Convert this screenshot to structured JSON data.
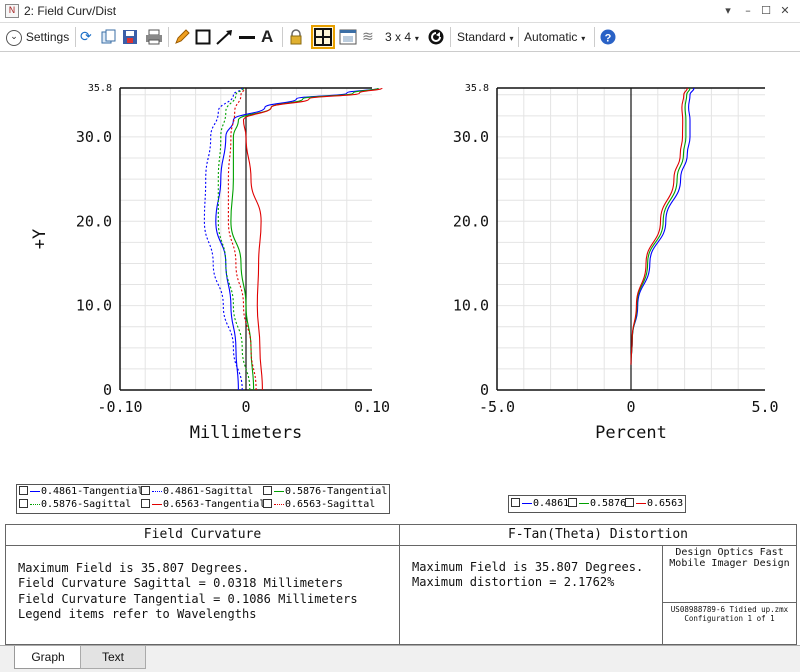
{
  "window": {
    "title": "2: Field Curv/Dist",
    "icon": "document-icon"
  },
  "toolbar": {
    "settings_label": "Settings",
    "layout_label": "3 x 4",
    "standard_label": "Standard",
    "automatic_label": "Automatic",
    "icons": [
      "refresh-icon",
      "copy-icon",
      "save-icon",
      "print-icon",
      "pencil-icon",
      "rectangle-icon",
      "arrow-icon",
      "line-icon",
      "text-icon",
      "lock-icon",
      "fit-icon",
      "window-icon",
      "layers-icon",
      "rotate-icon",
      "help-icon"
    ]
  },
  "chart_data": [
    {
      "type": "line",
      "title": "",
      "xlabel": "Millimeters",
      "ylabel": "+Y",
      "xlim": [
        -0.1,
        0.1
      ],
      "ylim": [
        0,
        35.8
      ],
      "x_ticks": [
        "-0.10",
        "0",
        "0.10"
      ],
      "y_ticks": [
        "0",
        "10.0",
        "20.0",
        "30.0",
        "35.8"
      ],
      "grid": true,
      "legend_position": "below",
      "series": [
        {
          "name": "0.4861-Tangential",
          "color": "#0000ff",
          "dashed": false,
          "y": [
            0,
            5,
            10,
            15,
            20,
            25,
            30,
            32,
            33.5,
            34.5,
            35.2,
            35.8
          ],
          "x": [
            -0.006,
            -0.008,
            -0.012,
            -0.016,
            -0.024,
            -0.02,
            -0.016,
            -0.01,
            0.015,
            0.04,
            0.08,
            0.105
          ]
        },
        {
          "name": "0.4861-Sagittal",
          "color": "#0000ff",
          "dashed": true,
          "y": [
            0,
            5,
            10,
            15,
            20,
            25,
            30,
            33,
            35,
            35.8
          ],
          "x": [
            -0.003,
            -0.01,
            -0.018,
            -0.026,
            -0.033,
            -0.032,
            -0.028,
            -0.022,
            -0.01,
            -0.003
          ]
        },
        {
          "name": "0.5876-Tangential",
          "color": "#00a000",
          "dashed": false,
          "y": [
            0,
            5,
            10,
            15,
            20,
            25,
            30,
            32,
            33.5,
            34.5,
            35.2,
            35.8
          ],
          "x": [
            0.006,
            0.004,
            0.0,
            -0.004,
            -0.012,
            -0.01,
            -0.01,
            -0.006,
            0.02,
            0.045,
            0.085,
            0.105
          ]
        },
        {
          "name": "0.5876-Sagittal",
          "color": "#00a000",
          "dashed": true,
          "y": [
            0,
            5,
            10,
            15,
            20,
            25,
            30,
            33,
            35,
            35.8
          ],
          "x": [
            0.003,
            -0.003,
            -0.01,
            -0.016,
            -0.022,
            -0.022,
            -0.02,
            -0.016,
            -0.008,
            -0.002
          ]
        },
        {
          "name": "0.6563-Tangential",
          "color": "#e00000",
          "dashed": false,
          "y": [
            0,
            5,
            10,
            15,
            20,
            25,
            30,
            32,
            33.5,
            34.5,
            35.2,
            35.8
          ],
          "x": [
            0.013,
            0.011,
            0.009,
            0.01,
            0.012,
            0.004,
            0.0,
            -0.002,
            0.02,
            0.05,
            0.09,
            0.108
          ]
        },
        {
          "name": "0.6563-Sagittal",
          "color": "#e00000",
          "dashed": true,
          "y": [
            0,
            5,
            10,
            15,
            20,
            25,
            30,
            33,
            35,
            35.8
          ],
          "x": [
            0.008,
            0.004,
            -0.002,
            -0.008,
            -0.014,
            -0.014,
            -0.012,
            -0.009,
            -0.004,
            -0.001
          ]
        }
      ]
    },
    {
      "type": "line",
      "title": "",
      "xlabel": "Percent",
      "ylabel": "",
      "xlim": [
        -5.0,
        5.0
      ],
      "ylim": [
        0,
        35.8
      ],
      "x_ticks": [
        "-5.0",
        "0",
        "5.0"
      ],
      "y_ticks": [
        "0",
        "10.0",
        "20.0",
        "30.0",
        "35.8"
      ],
      "grid": true,
      "legend_position": "below",
      "series": [
        {
          "name": "0.4861",
          "color": "#0000ff",
          "y": [
            3,
            6,
            10,
            15,
            20,
            25,
            28,
            30,
            32,
            33.5,
            35,
            35.8
          ],
          "x": [
            0,
            0.05,
            0.25,
            0.7,
            1.3,
            1.85,
            2.1,
            2.2,
            2.2,
            2.15,
            2.2,
            2.35
          ]
        },
        {
          "name": "0.5876",
          "color": "#00a000",
          "y": [
            3,
            6,
            10,
            15,
            20,
            25,
            28,
            30,
            32,
            33.5,
            35,
            35.8
          ],
          "x": [
            0,
            0.05,
            0.22,
            0.62,
            1.2,
            1.72,
            1.96,
            2.05,
            2.05,
            2.02,
            2.08,
            2.2
          ]
        },
        {
          "name": "0.6563",
          "color": "#e00000",
          "y": [
            3,
            6,
            10,
            15,
            20,
            25,
            28,
            30,
            32,
            33.5,
            35,
            35.8
          ],
          "x": [
            0,
            0.04,
            0.2,
            0.56,
            1.1,
            1.6,
            1.84,
            1.92,
            1.93,
            1.9,
            1.97,
            2.1
          ]
        }
      ]
    }
  ],
  "legend_left": {
    "items": [
      {
        "label": "0.4861-Tangential",
        "color": "#0000ff",
        "dashed": false
      },
      {
        "label": "0.4861-Sagittal",
        "color": "#0000ff",
        "dashed": true
      },
      {
        "label": "0.5876-Tangential",
        "color": "#00a000",
        "dashed": false
      },
      {
        "label": "0.5876-Sagittal",
        "color": "#00a000",
        "dashed": true
      },
      {
        "label": "0.6563-Tangential",
        "color": "#e00000",
        "dashed": false
      },
      {
        "label": "0.6563-Sagittal",
        "color": "#e00000",
        "dashed": true
      }
    ]
  },
  "legend_right": {
    "items": [
      {
        "label": "0.4861",
        "color": "#0000ff"
      },
      {
        "label": "0.5876",
        "color": "#00a000"
      },
      {
        "label": "0.6563",
        "color": "#e00000"
      }
    ]
  },
  "info": {
    "field_curvature_header": "Field Curvature",
    "distortion_header": "F-Tan(Theta) Distortion",
    "fc_line1": "Maximum Field is 35.807 Degrees.",
    "fc_line2": "Field Curvature Sagittal = 0.0318 Millimeters",
    "fc_line3": "Field Curvature Tangential = 0.1086 Millimeters",
    "fc_line4": "Legend items refer to Wavelengths",
    "dist_line1": "Maximum Field is 35.807 Degrees.",
    "dist_line2": "Maximum distortion = 2.1762%",
    "design_line1": "Design Optics Fast",
    "design_line2": "Mobile Imager Design",
    "file_line": "US08988789-6 Tidied up.zmx",
    "config_line": "Configuration 1 of 1"
  },
  "tabs": [
    {
      "label": "Graph",
      "active": true
    },
    {
      "label": "Text",
      "active": false
    }
  ]
}
